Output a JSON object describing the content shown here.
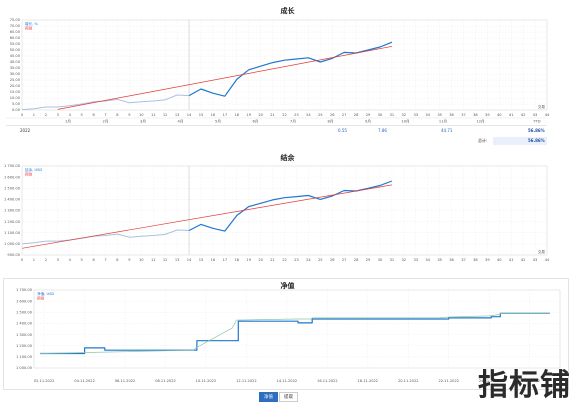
{
  "watermark": "指标铺",
  "bottom_tabs": [
    "净值",
    "提取"
  ],
  "chart_data": [
    {
      "type": "line",
      "title": "成长",
      "legend": [
        "增长, %",
        "预测"
      ],
      "ylim": [
        0,
        75
      ],
      "yticks": [
        "0.00",
        "5.00",
        "10.00",
        "15.00",
        "20.00",
        "25.00",
        "30.00",
        "35.00",
        "40.00",
        "45.00",
        "50.00",
        "55.00",
        "60.00",
        "65.00",
        "70.00",
        "75.00"
      ],
      "ytick_values": [
        0,
        5,
        10,
        15,
        20,
        25,
        30,
        35,
        40,
        45,
        50,
        55,
        60,
        65,
        70,
        75
      ],
      "xticks": [
        "0",
        "1",
        "2",
        "3",
        "4",
        "5",
        "6",
        "7",
        "8",
        "9",
        "10",
        "11",
        "12",
        "13",
        "14",
        "15",
        "16",
        "17",
        "18",
        "19",
        "20",
        "21",
        "22",
        "23",
        "24",
        "25",
        "26",
        "27",
        "28",
        "29",
        "30",
        "31",
        "32",
        "33",
        "34",
        "35",
        "36",
        "37",
        "38",
        "39",
        "40",
        "41",
        "42",
        "43",
        "44"
      ],
      "xlim": [
        0,
        44
      ],
      "corner_label": "交易",
      "series": [
        {
          "name": "history",
          "color": "#a9c1e2",
          "x": [
            0,
            1,
            2,
            3,
            4,
            5,
            6,
            7,
            8,
            9,
            10,
            11,
            12,
            13,
            14
          ],
          "values": [
            0.3,
            1.0,
            2.5,
            2.5,
            3.5,
            5.0,
            6.8,
            7.5,
            8.8,
            6.0,
            6.8,
            7.5,
            8.5,
            12.5,
            12.0
          ]
        },
        {
          "name": "增长, %",
          "color": "#1f77d0",
          "x": [
            14,
            15,
            16,
            17,
            18,
            19,
            20,
            21,
            22,
            23,
            24,
            25,
            26,
            27,
            28,
            29,
            30,
            31
          ],
          "values": [
            12.0,
            17.5,
            14.0,
            11.5,
            25.5,
            33.5,
            36.5,
            39.5,
            41.5,
            42.5,
            43.5,
            40.0,
            43.0,
            48.0,
            47.5,
            50.0,
            52.5,
            56.5
          ]
        },
        {
          "name": "预测",
          "color": "#e53935",
          "x": [
            3,
            31
          ],
          "values": [
            0.5,
            53.0
          ]
        }
      ],
      "table": {
        "row_label": "2022",
        "month_labels": [
          "1月",
          "2月",
          "3月",
          "4月",
          "5月",
          "6月",
          "7月",
          "8月",
          "9月",
          "10月",
          "11月",
          "12月",
          "YTD"
        ],
        "values": [
          "",
          "",
          "",
          "",
          "",
          "",
          "",
          "",
          "0.55",
          "7.86",
          "44.71",
          "",
          "56.86%"
        ],
        "total_label": "总计:",
        "total_value": "56.86%"
      }
    },
    {
      "type": "line",
      "title": "结余",
      "legend": [
        "结余, USD",
        "预测"
      ],
      "ylim": [
        900,
        1700
      ],
      "yticks": [
        "900.00",
        "1 000.00",
        "1 100.00",
        "1 200.00",
        "1 300.00",
        "1 400.00",
        "1 500.00",
        "1 600.00",
        "1 700.00"
      ],
      "ytick_values": [
        900,
        1000,
        1100,
        1200,
        1300,
        1400,
        1500,
        1600,
        1700
      ],
      "xticks": [
        "0",
        "1",
        "2",
        "3",
        "4",
        "5",
        "6",
        "7",
        "8",
        "9",
        "10",
        "11",
        "12",
        "13",
        "14",
        "15",
        "16",
        "17",
        "18",
        "19",
        "20",
        "21",
        "22",
        "23",
        "24",
        "25",
        "26",
        "27",
        "28",
        "29",
        "30",
        "31",
        "32",
        "33",
        "34",
        "35",
        "36",
        "37",
        "38",
        "39",
        "40",
        "41",
        "42",
        "43",
        "44"
      ],
      "xlim": [
        0,
        44
      ],
      "corner_label": "交易",
      "series": [
        {
          "name": "history",
          "color": "#a9c1e2",
          "x": [
            0,
            1,
            2,
            3,
            4,
            5,
            6,
            7,
            8,
            9,
            10,
            11,
            12,
            13,
            14
          ],
          "values": [
            1000,
            1010,
            1025,
            1025,
            1035,
            1050,
            1068,
            1075,
            1088,
            1060,
            1068,
            1075,
            1085,
            1125,
            1120
          ]
        },
        {
          "name": "结余, USD",
          "color": "#1f77d0",
          "x": [
            14,
            15,
            16,
            17,
            18,
            19,
            20,
            21,
            22,
            23,
            24,
            25,
            26,
            27,
            28,
            29,
            30,
            31
          ],
          "values": [
            1120,
            1175,
            1140,
            1115,
            1255,
            1335,
            1365,
            1395,
            1415,
            1425,
            1435,
            1400,
            1430,
            1480,
            1475,
            1500,
            1525,
            1565
          ]
        },
        {
          "name": "预测",
          "color": "#e53935",
          "x": [
            0,
            31
          ],
          "values": [
            960,
            1530
          ]
        }
      ]
    },
    {
      "type": "line",
      "title": "净值",
      "legend": [
        "净值, USD",
        "预测"
      ],
      "ylim": [
        1000,
        1700
      ],
      "yticks": [
        "1 000.00",
        "1 100.00",
        "1 200.00",
        "1 300.00",
        "1 400.00",
        "1 500.00",
        "1 600.00",
        "1 700.00"
      ],
      "ytick_values": [
        1000,
        1100,
        1200,
        1300,
        1400,
        1500,
        1600,
        1700
      ],
      "xticks": [
        "02.11.2022",
        "04.11.2022",
        "06.11.2022",
        "08.11.2022",
        "10.11.2022",
        "12.11.2022",
        "14.11.2022",
        "16.11.2022",
        "18.11.2022",
        "20.11.2022",
        "22.11.2022",
        "24.11.2022",
        "26.11.2022"
      ],
      "xtick_values": [
        2,
        4,
        6,
        8,
        10,
        12,
        14,
        16,
        18,
        20,
        22,
        24,
        26
      ],
      "xlim": [
        1.5,
        27.5
      ],
      "series": [
        {
          "name": "净值, USD",
          "color": "#1f77d0",
          "step": true,
          "x": [
            1.8,
            3.9,
            4.0,
            4.5,
            5.0,
            9.5,
            9.55,
            11.5,
            11.6,
            14.5,
            14.55,
            15.2,
            15.25,
            21.5,
            22.0,
            24.0,
            24.1,
            24.5,
            24.55,
            27.0
          ],
          "values": [
            1130,
            1130,
            1180,
            1180,
            1160,
            1160,
            1245,
            1245,
            1420,
            1420,
            1405,
            1405,
            1440,
            1440,
            1450,
            1450,
            1460,
            1460,
            1490,
            1490
          ]
        },
        {
          "name": "预测",
          "color": "#8fc7a6",
          "x": [
            1.8,
            9.4,
            9.5,
            11.3,
            11.5,
            14.5,
            15.2,
            15.25,
            21.5,
            22.0,
            24.0,
            24.5,
            24.55,
            27.0
          ],
          "values": [
            1130,
            1160,
            1180,
            1360,
            1430,
            1440,
            1440,
            1450,
            1450,
            1458,
            1468,
            1480,
            1490,
            1490
          ]
        }
      ]
    }
  ]
}
